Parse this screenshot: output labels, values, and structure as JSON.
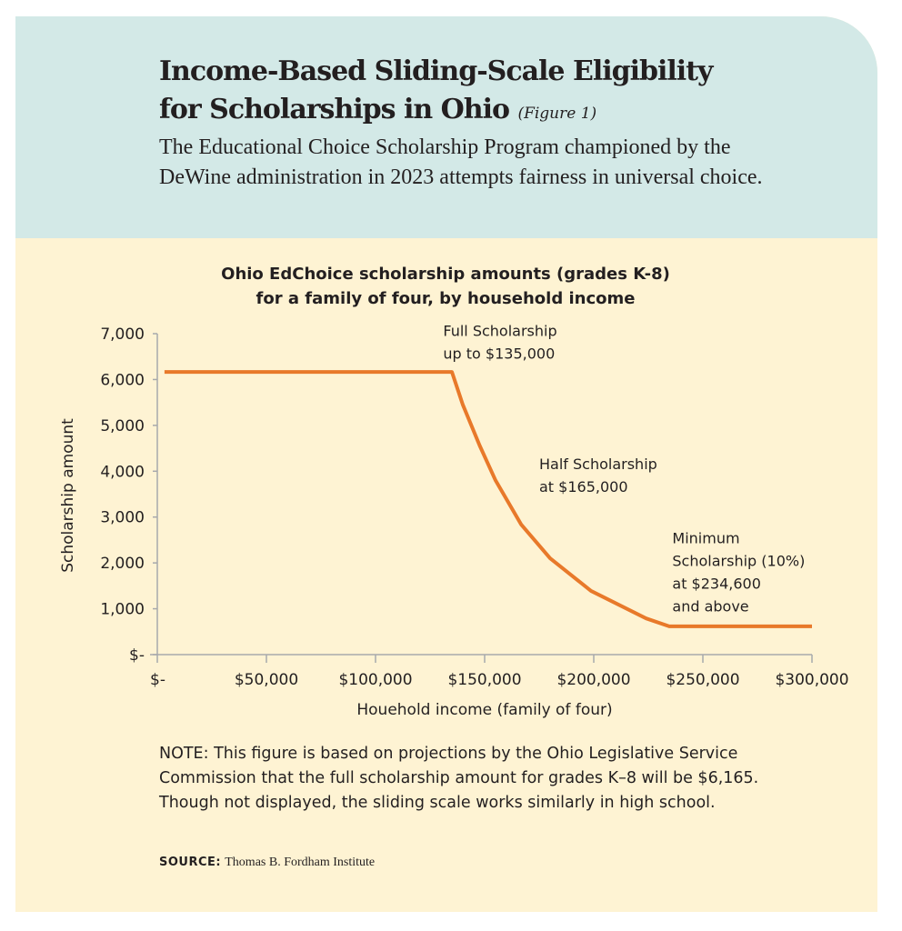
{
  "header": {
    "title_line1": "Income-Based Sliding-Scale Eligibility",
    "title_line2": "for Scholarships in Ohio",
    "figure_label": "(Figure 1)",
    "subtitle": "The Educational Choice Scholarship Program championed by the DeWine administration in 2023 attempts fairness in universal choice."
  },
  "chart_data": {
    "type": "line",
    "title_line1": "Ohio EdChoice scholarship amounts (grades K-8)",
    "title_line2": "for a family of four, by household income",
    "xlabel": "Houehold income (family of four)",
    "ylabel": "Scholarship amount",
    "xlim": [
      0,
      300000
    ],
    "ylim": [
      0,
      7000
    ],
    "x_ticks": [
      0,
      50000,
      100000,
      150000,
      200000,
      250000,
      300000
    ],
    "x_tick_labels": [
      "$-",
      "$50,000",
      "$100,000",
      "$150,000",
      "$200,000",
      "$250,000",
      "$300,000"
    ],
    "y_ticks": [
      0,
      1000,
      2000,
      3000,
      4000,
      5000,
      6000,
      7000
    ],
    "y_tick_labels": [
      "$-",
      "1,000",
      "2,000",
      "3,000",
      "4,000",
      "5,000",
      "6,000",
      "7,000"
    ],
    "grid": false,
    "line_color": "#e8792a",
    "series": [
      {
        "name": "Scholarship amount",
        "x": [
          3300,
          135000,
          140000,
          147700,
          155000,
          166700,
          180000,
          198750,
          224000,
          234600,
          300000
        ],
        "y": [
          6165,
          6165,
          5450,
          4560,
          3800,
          2840,
          2100,
          1390,
          790,
          616,
          616
        ]
      }
    ],
    "annotations": [
      {
        "lines": [
          "Full Scholarship",
          "up to $135,000"
        ],
        "x": 131000,
        "y": 6950
      },
      {
        "lines": [
          "Half Scholarship",
          "at $165,000"
        ],
        "x": 175000,
        "y": 4050
      },
      {
        "lines": [
          "Minimum",
          "Scholarship (10%)",
          "at $234,600",
          "and above"
        ],
        "x": 236000,
        "y": 2430
      }
    ]
  },
  "note": "NOTE: This figure is based on projections by the Ohio Legislative Service Commission that the full scholarship amount for grades K–8 will be $6,165. Though not displayed, the sliding scale works similarly in high school.",
  "source": {
    "label": "SOURCE:",
    "text": "Thomas B. Fordham Institute"
  }
}
